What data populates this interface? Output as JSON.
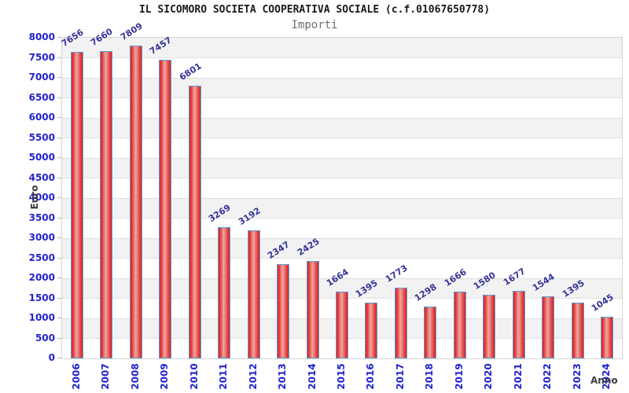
{
  "header": {
    "title": "IL SICOMORO SOCIETA COOPERATIVA SOCIALE (c.f.01067650778)",
    "subtitle": "Importi"
  },
  "chart_data": {
    "type": "bar",
    "title": "IL SICOMORO SOCIETA COOPERATIVA SOCIALE (c.f.01067650778)",
    "subtitle": "Importi",
    "xlabel": "Anno",
    "ylabel": "Euro",
    "categories": [
      "2006",
      "2007",
      "2008",
      "2009",
      "2010",
      "2011",
      "2012",
      "2013",
      "2014",
      "2015",
      "2016",
      "2017",
      "2018",
      "2019",
      "2020",
      "2021",
      "2022",
      "2023",
      "2024"
    ],
    "values": [
      7656,
      7660,
      7809,
      7457,
      6801,
      3269,
      3192,
      2347,
      2425,
      1664,
      1395,
      1773,
      1298,
      1666,
      1580,
      1677,
      1544,
      1395,
      1045
    ],
    "ylim": [
      0,
      8000
    ],
    "ytick_step": 500,
    "grid": true,
    "legend": false,
    "band_colors": [
      "#f2f2f2",
      "#ffffff"
    ],
    "colors": {
      "bar_fill": "#e03a30",
      "bar_border": "#5a9fd4",
      "value_label": "#34349b",
      "axis_text": "#2323cf",
      "title_text": "#1a1a1a",
      "subtitle_text": "#6e6e6e",
      "axis_title_text": "#3d3d3d",
      "gridline": "#e0e0e0"
    }
  }
}
